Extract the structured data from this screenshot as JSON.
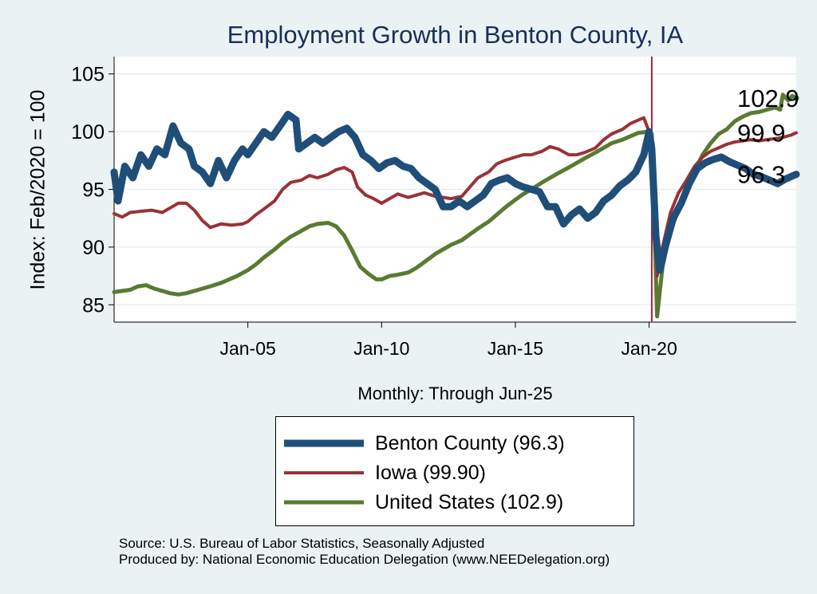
{
  "chart_data": {
    "type": "line",
    "title": "Employment Growth in Benton  County, IA",
    "ylabel": "Index: Feb/2020 = 100",
    "xlabel": "Monthly: Through Jun-25",
    "xlim": [
      2000.0,
      2025.5
    ],
    "ylim": [
      83.5,
      106.5
    ],
    "yticks": [
      85,
      90,
      95,
      100,
      105
    ],
    "xticks": [
      {
        "x": 2005.0,
        "label": "Jan-05"
      },
      {
        "x": 2010.0,
        "label": "Jan-10"
      },
      {
        "x": 2015.0,
        "label": "Jan-15"
      },
      {
        "x": 2020.0,
        "label": "Jan-20"
      }
    ],
    "reference_line_x": 2020.1,
    "grid": "horizontal",
    "series": [
      {
        "name": "Benton  County",
        "legend": "Benton  County (96.3)",
        "end_label": "96.3",
        "color": "#1f4e79",
        "width": 9,
        "points": [
          [
            2000.0,
            96.5
          ],
          [
            2000.15,
            94.0
          ],
          [
            2000.4,
            97.0
          ],
          [
            2000.7,
            96.0
          ],
          [
            2001.0,
            98.0
          ],
          [
            2001.3,
            97.0
          ],
          [
            2001.6,
            98.5
          ],
          [
            2001.9,
            98.0
          ],
          [
            2002.2,
            100.5
          ],
          [
            2002.5,
            99.0
          ],
          [
            2002.8,
            98.5
          ],
          [
            2003.0,
            97.0
          ],
          [
            2003.3,
            96.5
          ],
          [
            2003.6,
            95.5
          ],
          [
            2003.9,
            97.5
          ],
          [
            2004.2,
            96.0
          ],
          [
            2004.5,
            97.5
          ],
          [
            2004.8,
            98.5
          ],
          [
            2005.0,
            98.0
          ],
          [
            2005.3,
            99.0
          ],
          [
            2005.6,
            100.0
          ],
          [
            2005.9,
            99.5
          ],
          [
            2006.2,
            100.5
          ],
          [
            2006.5,
            101.5
          ],
          [
            2006.8,
            101.0
          ],
          [
            2006.9,
            98.5
          ],
          [
            2007.2,
            99.0
          ],
          [
            2007.5,
            99.5
          ],
          [
            2007.8,
            99.0
          ],
          [
            2008.1,
            99.5
          ],
          [
            2008.4,
            100.0
          ],
          [
            2008.7,
            100.3
          ],
          [
            2009.0,
            99.5
          ],
          [
            2009.3,
            98.0
          ],
          [
            2009.6,
            97.5
          ],
          [
            2009.9,
            96.8
          ],
          [
            2010.2,
            97.3
          ],
          [
            2010.5,
            97.5
          ],
          [
            2010.8,
            97.0
          ],
          [
            2011.1,
            96.8
          ],
          [
            2011.4,
            96.0
          ],
          [
            2011.7,
            95.5
          ],
          [
            2012.0,
            95.0
          ],
          [
            2012.3,
            93.5
          ],
          [
            2012.6,
            93.5
          ],
          [
            2012.9,
            94.0
          ],
          [
            2013.2,
            93.5
          ],
          [
            2013.5,
            94.0
          ],
          [
            2013.8,
            94.5
          ],
          [
            2014.1,
            95.5
          ],
          [
            2014.4,
            95.8
          ],
          [
            2014.7,
            96.0
          ],
          [
            2015.0,
            95.5
          ],
          [
            2015.3,
            95.2
          ],
          [
            2015.6,
            95.0
          ],
          [
            2015.9,
            94.8
          ],
          [
            2016.2,
            93.5
          ],
          [
            2016.5,
            93.5
          ],
          [
            2016.8,
            92.0
          ],
          [
            2017.1,
            92.8
          ],
          [
            2017.4,
            93.3
          ],
          [
            2017.7,
            92.5
          ],
          [
            2018.0,
            93.0
          ],
          [
            2018.3,
            94.0
          ],
          [
            2018.6,
            94.5
          ],
          [
            2018.9,
            95.3
          ],
          [
            2019.2,
            95.8
          ],
          [
            2019.5,
            96.5
          ],
          [
            2019.8,
            98.0
          ],
          [
            2020.0,
            100.0
          ],
          [
            2020.1,
            98.5
          ],
          [
            2020.25,
            91.0
          ],
          [
            2020.4,
            88.0
          ],
          [
            2020.6,
            90.0
          ],
          [
            2020.9,
            92.5
          ],
          [
            2021.2,
            93.8
          ],
          [
            2021.5,
            95.5
          ],
          [
            2021.8,
            96.8
          ],
          [
            2022.1,
            97.3
          ],
          [
            2022.4,
            97.6
          ],
          [
            2022.7,
            97.8
          ],
          [
            2023.0,
            97.4
          ],
          [
            2023.3,
            97.1
          ],
          [
            2023.6,
            96.8
          ],
          [
            2023.9,
            96.3
          ],
          [
            2024.2,
            96.1
          ],
          [
            2024.5,
            95.8
          ],
          [
            2024.8,
            95.5
          ],
          [
            2025.1,
            95.9
          ],
          [
            2025.4,
            96.2
          ],
          [
            2025.5,
            96.3
          ]
        ]
      },
      {
        "name": "Iowa",
        "legend": "Iowa (99.90)",
        "end_label": "99.9",
        "color": "#9b3136",
        "width": 4,
        "points": [
          [
            2000.0,
            92.9
          ],
          [
            2000.3,
            92.6
          ],
          [
            2000.6,
            93.0
          ],
          [
            2001.0,
            93.1
          ],
          [
            2001.4,
            93.2
          ],
          [
            2001.8,
            93.0
          ],
          [
            2002.1,
            93.4
          ],
          [
            2002.4,
            93.8
          ],
          [
            2002.7,
            93.8
          ],
          [
            2003.0,
            93.2
          ],
          [
            2003.3,
            92.3
          ],
          [
            2003.6,
            91.7
          ],
          [
            2004.0,
            92.0
          ],
          [
            2004.4,
            91.9
          ],
          [
            2004.8,
            92.0
          ],
          [
            2005.0,
            92.2
          ],
          [
            2005.3,
            92.8
          ],
          [
            2005.6,
            93.3
          ],
          [
            2006.0,
            94.0
          ],
          [
            2006.3,
            95.0
          ],
          [
            2006.6,
            95.6
          ],
          [
            2007.0,
            95.8
          ],
          [
            2007.3,
            96.2
          ],
          [
            2007.6,
            96.0
          ],
          [
            2008.0,
            96.3
          ],
          [
            2008.3,
            96.7
          ],
          [
            2008.6,
            96.9
          ],
          [
            2008.9,
            96.5
          ],
          [
            2009.1,
            95.2
          ],
          [
            2009.4,
            94.5
          ],
          [
            2009.7,
            94.2
          ],
          [
            2010.0,
            93.8
          ],
          [
            2010.3,
            94.2
          ],
          [
            2010.6,
            94.6
          ],
          [
            2011.0,
            94.3
          ],
          [
            2011.3,
            94.5
          ],
          [
            2011.6,
            94.7
          ],
          [
            2012.0,
            94.4
          ],
          [
            2012.3,
            94.3
          ],
          [
            2012.6,
            94.2
          ],
          [
            2013.0,
            94.4
          ],
          [
            2013.3,
            95.2
          ],
          [
            2013.6,
            96.0
          ],
          [
            2014.0,
            96.5
          ],
          [
            2014.3,
            97.2
          ],
          [
            2014.6,
            97.5
          ],
          [
            2015.0,
            97.8
          ],
          [
            2015.3,
            98.0
          ],
          [
            2015.6,
            98.0
          ],
          [
            2016.0,
            98.3
          ],
          [
            2016.3,
            98.7
          ],
          [
            2016.6,
            98.5
          ],
          [
            2017.0,
            98.0
          ],
          [
            2017.3,
            98.0
          ],
          [
            2017.6,
            98.2
          ],
          [
            2018.0,
            98.6
          ],
          [
            2018.3,
            99.3
          ],
          [
            2018.6,
            99.8
          ],
          [
            2019.0,
            100.2
          ],
          [
            2019.3,
            100.7
          ],
          [
            2019.6,
            101.0
          ],
          [
            2019.8,
            101.2
          ],
          [
            2020.0,
            100.0
          ],
          [
            2020.15,
            99.0
          ],
          [
            2020.3,
            87.5
          ],
          [
            2020.5,
            90.0
          ],
          [
            2020.8,
            93.0
          ],
          [
            2021.1,
            94.7
          ],
          [
            2021.4,
            95.8
          ],
          [
            2021.7,
            97.0
          ],
          [
            2022.0,
            97.8
          ],
          [
            2022.3,
            98.3
          ],
          [
            2022.6,
            98.6
          ],
          [
            2022.9,
            98.9
          ],
          [
            2023.2,
            99.1
          ],
          [
            2023.5,
            99.2
          ],
          [
            2023.8,
            99.3
          ],
          [
            2024.1,
            99.2
          ],
          [
            2024.4,
            99.3
          ],
          [
            2024.7,
            99.4
          ],
          [
            2025.0,
            99.5
          ],
          [
            2025.3,
            99.7
          ],
          [
            2025.5,
            99.9
          ]
        ]
      },
      {
        "name": "United States",
        "legend": "United States (102.9)",
        "end_label": "102.9",
        "color": "#5a7a32",
        "width": 5,
        "points": [
          [
            2000.0,
            86.1
          ],
          [
            2000.3,
            86.2
          ],
          [
            2000.6,
            86.3
          ],
          [
            2000.9,
            86.6
          ],
          [
            2001.2,
            86.7
          ],
          [
            2001.5,
            86.4
          ],
          [
            2001.8,
            86.2
          ],
          [
            2002.1,
            86.0
          ],
          [
            2002.4,
            85.9
          ],
          [
            2002.7,
            86.0
          ],
          [
            2003.0,
            86.2
          ],
          [
            2003.3,
            86.4
          ],
          [
            2003.6,
            86.6
          ],
          [
            2004.0,
            86.9
          ],
          [
            2004.3,
            87.2
          ],
          [
            2004.6,
            87.5
          ],
          [
            2005.0,
            88.0
          ],
          [
            2005.3,
            88.5
          ],
          [
            2005.6,
            89.1
          ],
          [
            2006.0,
            89.8
          ],
          [
            2006.3,
            90.4
          ],
          [
            2006.6,
            90.9
          ],
          [
            2007.0,
            91.4
          ],
          [
            2007.3,
            91.8
          ],
          [
            2007.6,
            92.0
          ],
          [
            2008.0,
            92.1
          ],
          [
            2008.3,
            91.8
          ],
          [
            2008.6,
            91.0
          ],
          [
            2008.9,
            89.7
          ],
          [
            2009.2,
            88.3
          ],
          [
            2009.5,
            87.7
          ],
          [
            2009.8,
            87.2
          ],
          [
            2010.0,
            87.2
          ],
          [
            2010.3,
            87.5
          ],
          [
            2010.6,
            87.6
          ],
          [
            2011.0,
            87.8
          ],
          [
            2011.3,
            88.2
          ],
          [
            2011.6,
            88.7
          ],
          [
            2012.0,
            89.4
          ],
          [
            2012.3,
            89.8
          ],
          [
            2012.6,
            90.2
          ],
          [
            2013.0,
            90.6
          ],
          [
            2013.3,
            91.1
          ],
          [
            2013.6,
            91.6
          ],
          [
            2014.0,
            92.2
          ],
          [
            2014.3,
            92.8
          ],
          [
            2014.6,
            93.4
          ],
          [
            2015.0,
            94.1
          ],
          [
            2015.3,
            94.6
          ],
          [
            2015.6,
            95.0
          ],
          [
            2016.0,
            95.6
          ],
          [
            2016.3,
            96.0
          ],
          [
            2016.6,
            96.4
          ],
          [
            2017.0,
            96.9
          ],
          [
            2017.3,
            97.3
          ],
          [
            2017.6,
            97.7
          ],
          [
            2018.0,
            98.2
          ],
          [
            2018.3,
            98.6
          ],
          [
            2018.6,
            99.0
          ],
          [
            2019.0,
            99.3
          ],
          [
            2019.3,
            99.6
          ],
          [
            2019.6,
            99.9
          ],
          [
            2020.0,
            100.0
          ],
          [
            2020.1,
            99.8
          ],
          [
            2020.3,
            84.0
          ],
          [
            2020.5,
            88.3
          ],
          [
            2020.8,
            91.5
          ],
          [
            2021.1,
            93.2
          ],
          [
            2021.4,
            95.0
          ],
          [
            2021.7,
            96.6
          ],
          [
            2022.0,
            98.0
          ],
          [
            2022.3,
            99.0
          ],
          [
            2022.6,
            99.8
          ],
          [
            2022.9,
            100.2
          ],
          [
            2023.2,
            100.9
          ],
          [
            2023.5,
            101.3
          ],
          [
            2023.8,
            101.6
          ],
          [
            2024.1,
            101.7
          ],
          [
            2024.4,
            101.9
          ],
          [
            2024.7,
            102.1
          ],
          [
            2024.9,
            101.9
          ],
          [
            2025.0,
            103.2
          ],
          [
            2025.2,
            102.7
          ],
          [
            2025.35,
            103.1
          ],
          [
            2025.5,
            102.9
          ]
        ]
      }
    ]
  },
  "source_line": "Source: U.S. Bureau of Labor Statistics, Seasonally Adjusted",
  "produced_line": "Produced by: National Economic Education Delegation (www.NEEDelegation.org)"
}
